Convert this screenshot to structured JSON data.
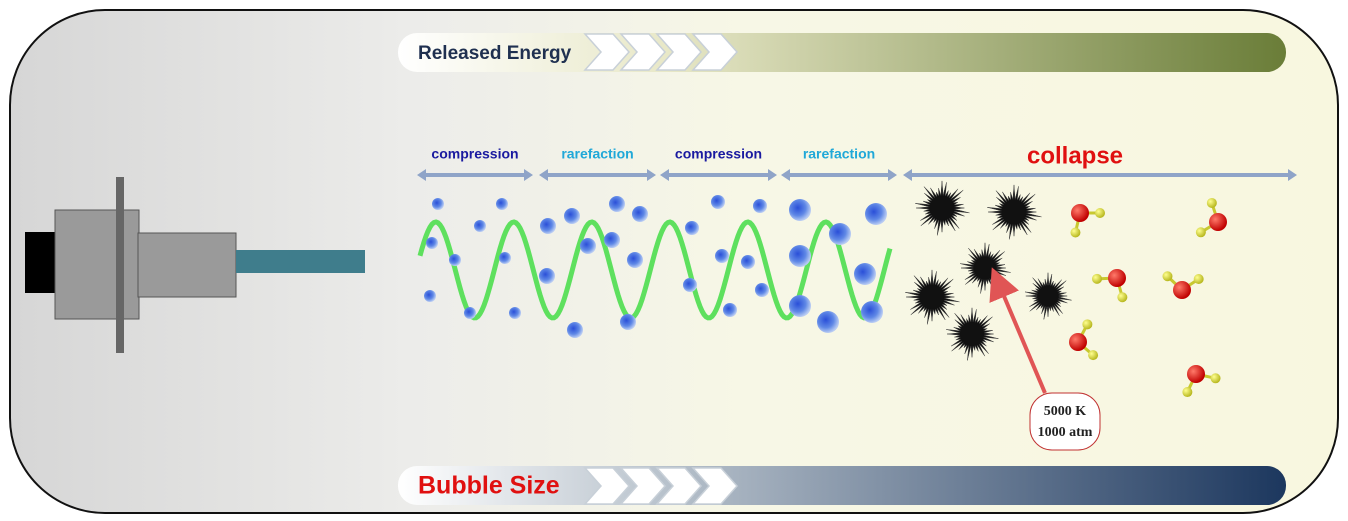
{
  "top_bar": {
    "label": "Released Energy"
  },
  "phases": [
    {
      "label": "compression"
    },
    {
      "label": "rarefaction"
    },
    {
      "label": "compression"
    },
    {
      "label": "rarefaction"
    }
  ],
  "collapse": {
    "label": "collapse"
  },
  "callout": {
    "lines": [
      "5000 K",
      "1000 atm"
    ]
  },
  "bottom_bar": {
    "label": "Bubble Size"
  }
}
